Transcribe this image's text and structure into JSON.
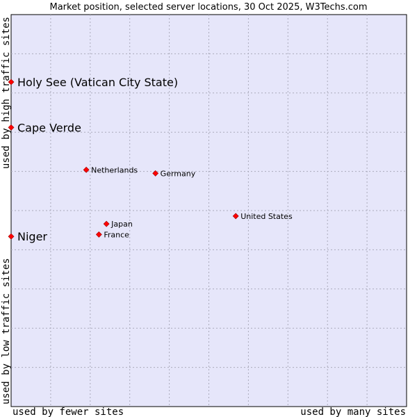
{
  "chart_data": {
    "type": "scatter",
    "title": "Market position, selected server locations, 30 Oct 2025, W3Techs.com",
    "xlabel_left": "used by fewer sites",
    "xlabel_right": "used by many sites",
    "ylabel_bottom": "used by low traffic sites",
    "ylabel_top": "used by high traffic sites",
    "xlim": [
      0,
      100
    ],
    "ylim": [
      0,
      100
    ],
    "grid": true,
    "colors": {
      "plot_bg": "#e6e6fa",
      "grid": "#aaaabb",
      "point": "#ff0000",
      "point_edge": "#990000"
    },
    "points": [
      {
        "label": "Holy See (Vatican City State)",
        "x": 0.0,
        "y": 82.8,
        "emphasis": true
      },
      {
        "label": "Cape Verde",
        "x": 0.0,
        "y": 71.2,
        "emphasis": true
      },
      {
        "label": "Niger",
        "x": 0.0,
        "y": 43.4,
        "emphasis": true
      },
      {
        "label": "Netherlands",
        "x": 19.0,
        "y": 60.4,
        "emphasis": false
      },
      {
        "label": "Germany",
        "x": 36.5,
        "y": 59.5,
        "emphasis": false
      },
      {
        "label": "United States",
        "x": 56.8,
        "y": 48.6,
        "emphasis": false
      },
      {
        "label": "Japan",
        "x": 24.1,
        "y": 46.6,
        "emphasis": false
      },
      {
        "label": "France",
        "x": 22.2,
        "y": 43.9,
        "emphasis": false
      }
    ]
  }
}
